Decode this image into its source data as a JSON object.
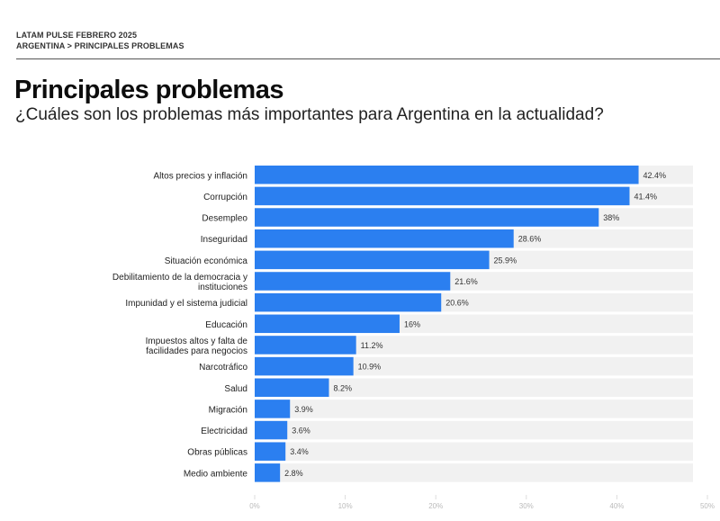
{
  "header": {
    "line1": "LATAM PULSE  FEBRERO 2025",
    "breadcrumb": "ARGENTINA > PRINCIPALES PROBLEMAS"
  },
  "chart_data": {
    "type": "bar",
    "orientation": "horizontal",
    "title": "Principales problemas",
    "subtitle": "¿Cuáles son los problemas más importantes para Argentina en la actualidad?",
    "categories": [
      "Altos precios y inflación",
      "Corrupción",
      "Desempleo",
      "Inseguridad",
      "Situación económica",
      "Debilitamiento de la democracia y instituciones",
      "Impunidad y el sistema judicial",
      "Educación",
      "Impuestos altos y falta de facilidades para negocios",
      "Narcotráfico",
      "Salud",
      "Migración",
      "Electricidad",
      "Obras públicas",
      "Medio ambiente"
    ],
    "category_lines": [
      [
        "Altos precios y inflación"
      ],
      [
        "Corrupción"
      ],
      [
        "Desempleo"
      ],
      [
        "Inseguridad"
      ],
      [
        "Situación económica"
      ],
      [
        "Debilitamiento de la democracia y",
        "instituciones"
      ],
      [
        "Impunidad y el sistema judicial"
      ],
      [
        "Educación"
      ],
      [
        "Impuestos altos y falta de",
        "facilidades para negocios"
      ],
      [
        "Narcotráfico"
      ],
      [
        "Salud"
      ],
      [
        "Migración"
      ],
      [
        "Electricidad"
      ],
      [
        "Obras públicas"
      ],
      [
        "Medio ambiente"
      ]
    ],
    "values": [
      42.4,
      41.4,
      38,
      28.6,
      25.9,
      21.6,
      20.6,
      16,
      11.2,
      10.9,
      8.2,
      3.9,
      3.6,
      3.4,
      2.8
    ],
    "data_labels": [
      "42.4%",
      "41.4%",
      "38%",
      "28.6%",
      "25.9%",
      "21.6%",
      "20.6%",
      "16%",
      "11.2%",
      "10.9%",
      "8.2%",
      "3.9%",
      "3.6%",
      "3.4%",
      "2.8%"
    ],
    "xlim": [
      0,
      50
    ],
    "xticks": [
      "0%",
      "10%",
      "20%",
      "30%",
      "40%",
      "50%"
    ],
    "xtick_values": [
      0,
      10,
      20,
      30,
      40,
      50
    ],
    "grid": false,
    "colors": {
      "bar": "#2b7ff0",
      "track": "#f1f1f1",
      "tick": "#bbbbbb"
    }
  }
}
